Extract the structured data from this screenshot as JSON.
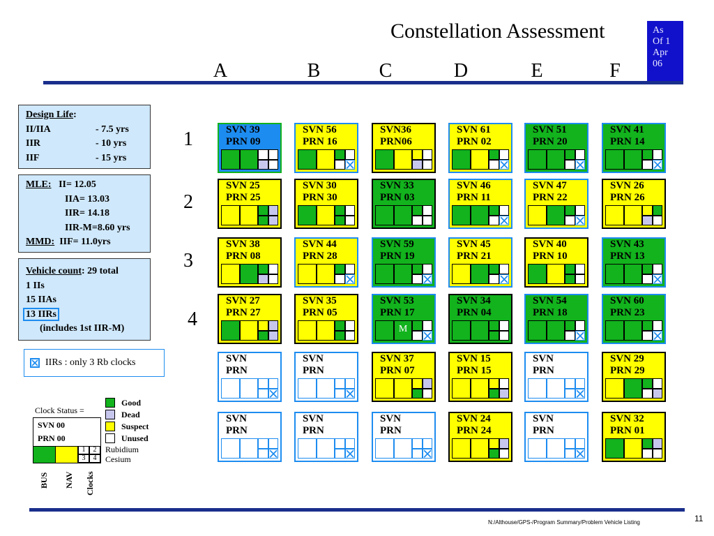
{
  "title": "Constellation Assessment",
  "as_of": [
    "As",
    "Of  1",
    "Apr",
    "06"
  ],
  "planes": [
    "A",
    "B",
    "C",
    "D",
    "E",
    "F"
  ],
  "slots": [
    "1",
    "2",
    "3",
    "4"
  ],
  "design_life": {
    "heading": "Design Life",
    "rows": [
      [
        "II/IIA",
        "-  7.5 yrs"
      ],
      [
        "IIR",
        "-  10 yrs"
      ],
      [
        "IIF",
        "-  15 yrs"
      ]
    ]
  },
  "mle": {
    "heading": "MLE:",
    "lines": [
      "II= 12.05",
      "IIA= 13.03",
      "IIR= 14.18",
      "IIR-M=8.60 yrs"
    ],
    "mmd_heading": "MMD:",
    "mmd": "IIF= 11.0yrs"
  },
  "vehicle_count": {
    "heading": "Vehicle count",
    "total": ": 29 total",
    "lines": [
      "1 IIs",
      "15 IIAs",
      "13 IIRs",
      "(includes 1st IIR-M)"
    ]
  },
  "iir_note": "IIRs : only 3 Rb clocks",
  "clock_status": {
    "heading": "Clock Status =",
    "svn": "SVN 00",
    "prn": "PRN 00",
    "legend": [
      "Good",
      "Dead",
      "Suspect",
      "Unused"
    ],
    "clock_nums": [
      "1",
      "2",
      "3",
      "4"
    ],
    "rubidium": "Rubidium",
    "cesium": "Cesium",
    "axis_labels": [
      "BUS",
      "NAV",
      "Clocks"
    ]
  },
  "colors": {
    "good": "#12b31d",
    "dead": "#c7c7ee",
    "suspect": "#ffff00",
    "unused": "#ffffff",
    "accent": "#1d8cf0",
    "bar": "#1a2f8c"
  },
  "satellites": [
    {
      "label": "SVN 39\nPRN 09",
      "border": "green",
      "bg": "blue",
      "bus": "green",
      "nav": "green",
      "clocks": [
        "white",
        "white",
        "lav",
        "white"
      ]
    },
    {
      "label": "SVN 56\nPRN 16",
      "border": "blue",
      "bg": "yellow",
      "bus": "green",
      "nav": "yellow",
      "clocks": [
        "green",
        "white",
        "white",
        "X"
      ]
    },
    {
      "label": "SVN36\nPRN06",
      "border": "black",
      "bg": "yellow",
      "bus": "green",
      "nav": "yellow",
      "clocks": [
        "yellow",
        "white",
        "lav",
        "white"
      ]
    },
    {
      "label": "SVN 61\nPRN 02",
      "border": "blue",
      "bg": "yellow",
      "bus": "green",
      "nav": "yellow",
      "clocks": [
        "green",
        "white",
        "white",
        "X"
      ]
    },
    {
      "label": "SVN 51\nPRN 20",
      "border": "blue",
      "bg": "green",
      "bus": "green",
      "nav": "green",
      "clocks": [
        "green",
        "white",
        "white",
        "X"
      ]
    },
    {
      "label": "SVN 41\nPRN 14",
      "border": "blue",
      "bg": "green",
      "bus": "green",
      "nav": "green",
      "clocks": [
        "green",
        "white",
        "white",
        "X"
      ]
    },
    {
      "label": "SVN 25\nPRN 25",
      "border": "black",
      "bg": "yellow",
      "bus": "yellow",
      "nav": "yellow",
      "clocks": [
        "green",
        "lav",
        "green",
        "lav"
      ]
    },
    {
      "label": "SVN 30\nPRN 30",
      "border": "black",
      "bg": "yellow",
      "bus": "green",
      "nav": "yellow",
      "clocks": [
        "green",
        "white",
        "green",
        "white"
      ]
    },
    {
      "label": "SVN 33\nPRN 03",
      "border": "black",
      "bg": "green",
      "bus": "green",
      "nav": "green",
      "clocks": [
        "green",
        "white",
        "white",
        "white"
      ]
    },
    {
      "label": "SVN 46\nPRN 11",
      "border": "blue",
      "bg": "yellow",
      "bus": "green",
      "nav": "green",
      "clocks": [
        "green",
        "white",
        "white",
        "X"
      ]
    },
    {
      "label": "SVN 47\nPRN 22",
      "border": "blue",
      "bg": "yellow",
      "bus": "yellow",
      "nav": "green",
      "clocks": [
        "green",
        "white",
        "white",
        "X"
      ]
    },
    {
      "label": "SVN 26\nPRN 26",
      "border": "black",
      "bg": "yellow",
      "bus": "yellow",
      "nav": "yellow",
      "clocks": [
        "yellow",
        "green",
        "lav",
        "white"
      ]
    },
    {
      "label": "SVN 38\nPRN 08",
      "border": "black",
      "bg": "yellow",
      "bus": "yellow",
      "nav": "green",
      "clocks": [
        "green",
        "white",
        "lav",
        "white"
      ]
    },
    {
      "label": "SVN 44\nPRN 28",
      "border": "blue",
      "bg": "yellow",
      "bus": "yellow",
      "nav": "yellow",
      "clocks": [
        "green",
        "white",
        "white",
        "X"
      ]
    },
    {
      "label": "SVN 59\nPRN 19",
      "border": "blue",
      "bg": "green",
      "bus": "green",
      "nav": "green",
      "clocks": [
        "green",
        "white",
        "white",
        "X"
      ]
    },
    {
      "label": "SVN 45\nPRN 21",
      "border": "blue",
      "bg": "yellow",
      "bus": "yellow",
      "nav": "green",
      "clocks": [
        "green",
        "white",
        "white",
        "X"
      ]
    },
    {
      "label": "SVN 40\nPRN 10",
      "border": "black",
      "bg": "yellow",
      "bus": "green",
      "nav": "yellow",
      "clocks": [
        "green",
        "white",
        "green",
        "white"
      ]
    },
    {
      "label": "SVN 43\nPRN 13",
      "border": "blue",
      "bg": "green",
      "bus": "green",
      "nav": "green",
      "clocks": [
        "green",
        "white",
        "white",
        "X"
      ]
    },
    {
      "label": "SVN 27\nPRN 27",
      "border": "black",
      "bg": "yellow",
      "bus": "green",
      "nav": "yellow",
      "clocks": [
        "yellow",
        "lav",
        "green",
        "lav"
      ]
    },
    {
      "label": "SVN 35\nPRN 05",
      "border": "black",
      "bg": "yellow",
      "bus": "yellow",
      "nav": "yellow",
      "clocks": [
        "green",
        "white",
        "green",
        "white"
      ]
    },
    {
      "label": "SVN 53\nPRN 17",
      "border": "blue",
      "bg": "green",
      "bus": "green",
      "nav": "green",
      "clocks": [
        "green",
        "white",
        "white",
        "X"
      ],
      "m": "M"
    },
    {
      "label": "SVN 34\nPRN 04",
      "border": "black",
      "bg": "green",
      "bus": "green",
      "nav": "green",
      "clocks": [
        "green",
        "white",
        "green",
        "white"
      ]
    },
    {
      "label": "SVN 54\nPRN 18",
      "border": "blue",
      "bg": "green",
      "bus": "green",
      "nav": "green",
      "clocks": [
        "green",
        "white",
        "white",
        "X"
      ]
    },
    {
      "label": "SVN 60\nPRN 23",
      "border": "blue",
      "bg": "green",
      "bus": "green",
      "nav": "green",
      "clocks": [
        "green",
        "white",
        "white",
        "X"
      ]
    },
    {
      "label": "SVN\nPRN",
      "border": "blue",
      "bg": "white",
      "bus": "white",
      "nav": "white",
      "clocks": [
        "white",
        "white",
        "white",
        "X"
      ]
    },
    {
      "label": "SVN\nPRN",
      "border": "blue",
      "bg": "white",
      "bus": "white",
      "nav": "white",
      "clocks": [
        "white",
        "white",
        "white",
        "X"
      ]
    },
    {
      "label": "SVN 37\nPRN 07",
      "border": "black",
      "bg": "yellow",
      "bus": "yellow",
      "nav": "yellow",
      "clocks": [
        "yellow",
        "lav",
        "green",
        "white"
      ]
    },
    {
      "label": "SVN 15\nPRN 15",
      "border": "black",
      "bg": "yellow",
      "bus": "yellow",
      "nav": "yellow",
      "clocks": [
        "yellow",
        "white",
        "green",
        "lav"
      ]
    },
    {
      "label": "SVN\nPRN",
      "border": "blue",
      "bg": "white",
      "bus": "white",
      "nav": "white",
      "clocks": [
        "white",
        "white",
        "white",
        "X"
      ]
    },
    {
      "label": "SVN 29\nPRN 29",
      "border": "black",
      "bg": "yellow",
      "bus": "yellow",
      "nav": "green",
      "clocks": [
        "green",
        "white",
        "white",
        "lav"
      ]
    },
    {
      "label": "SVN\nPRN",
      "border": "blue",
      "bg": "white",
      "bus": "white",
      "nav": "white",
      "clocks": [
        "white",
        "white",
        "white",
        "X"
      ]
    },
    {
      "label": "SVN\nPRN",
      "border": "blue",
      "bg": "white",
      "bus": "white",
      "nav": "white",
      "clocks": [
        "white",
        "white",
        "white",
        "X"
      ]
    },
    {
      "label": "SVN\nPRN",
      "border": "blue",
      "bg": "white",
      "bus": "white",
      "nav": "white",
      "clocks": [
        "white",
        "white",
        "white",
        "X"
      ]
    },
    {
      "label": "SVN 24\nPRN 24",
      "border": "black",
      "bg": "yellow",
      "bus": "yellow",
      "nav": "yellow",
      "clocks": [
        "yellow",
        "lav",
        "green",
        "white"
      ]
    },
    {
      "label": "SVN\nPRN",
      "border": "blue",
      "bg": "white",
      "bus": "white",
      "nav": "white",
      "clocks": [
        "white",
        "white",
        "white",
        "X"
      ]
    },
    {
      "label": "SVN 32\nPRN 01",
      "border": "black",
      "bg": "yellow",
      "bus": "green",
      "nav": "yellow",
      "clocks": [
        "green",
        "lav",
        "white",
        "white"
      ]
    }
  ],
  "footer": "N:/Althouse/GPS-/Program Summary/Problem Vehicle Listing",
  "page_number": "11"
}
